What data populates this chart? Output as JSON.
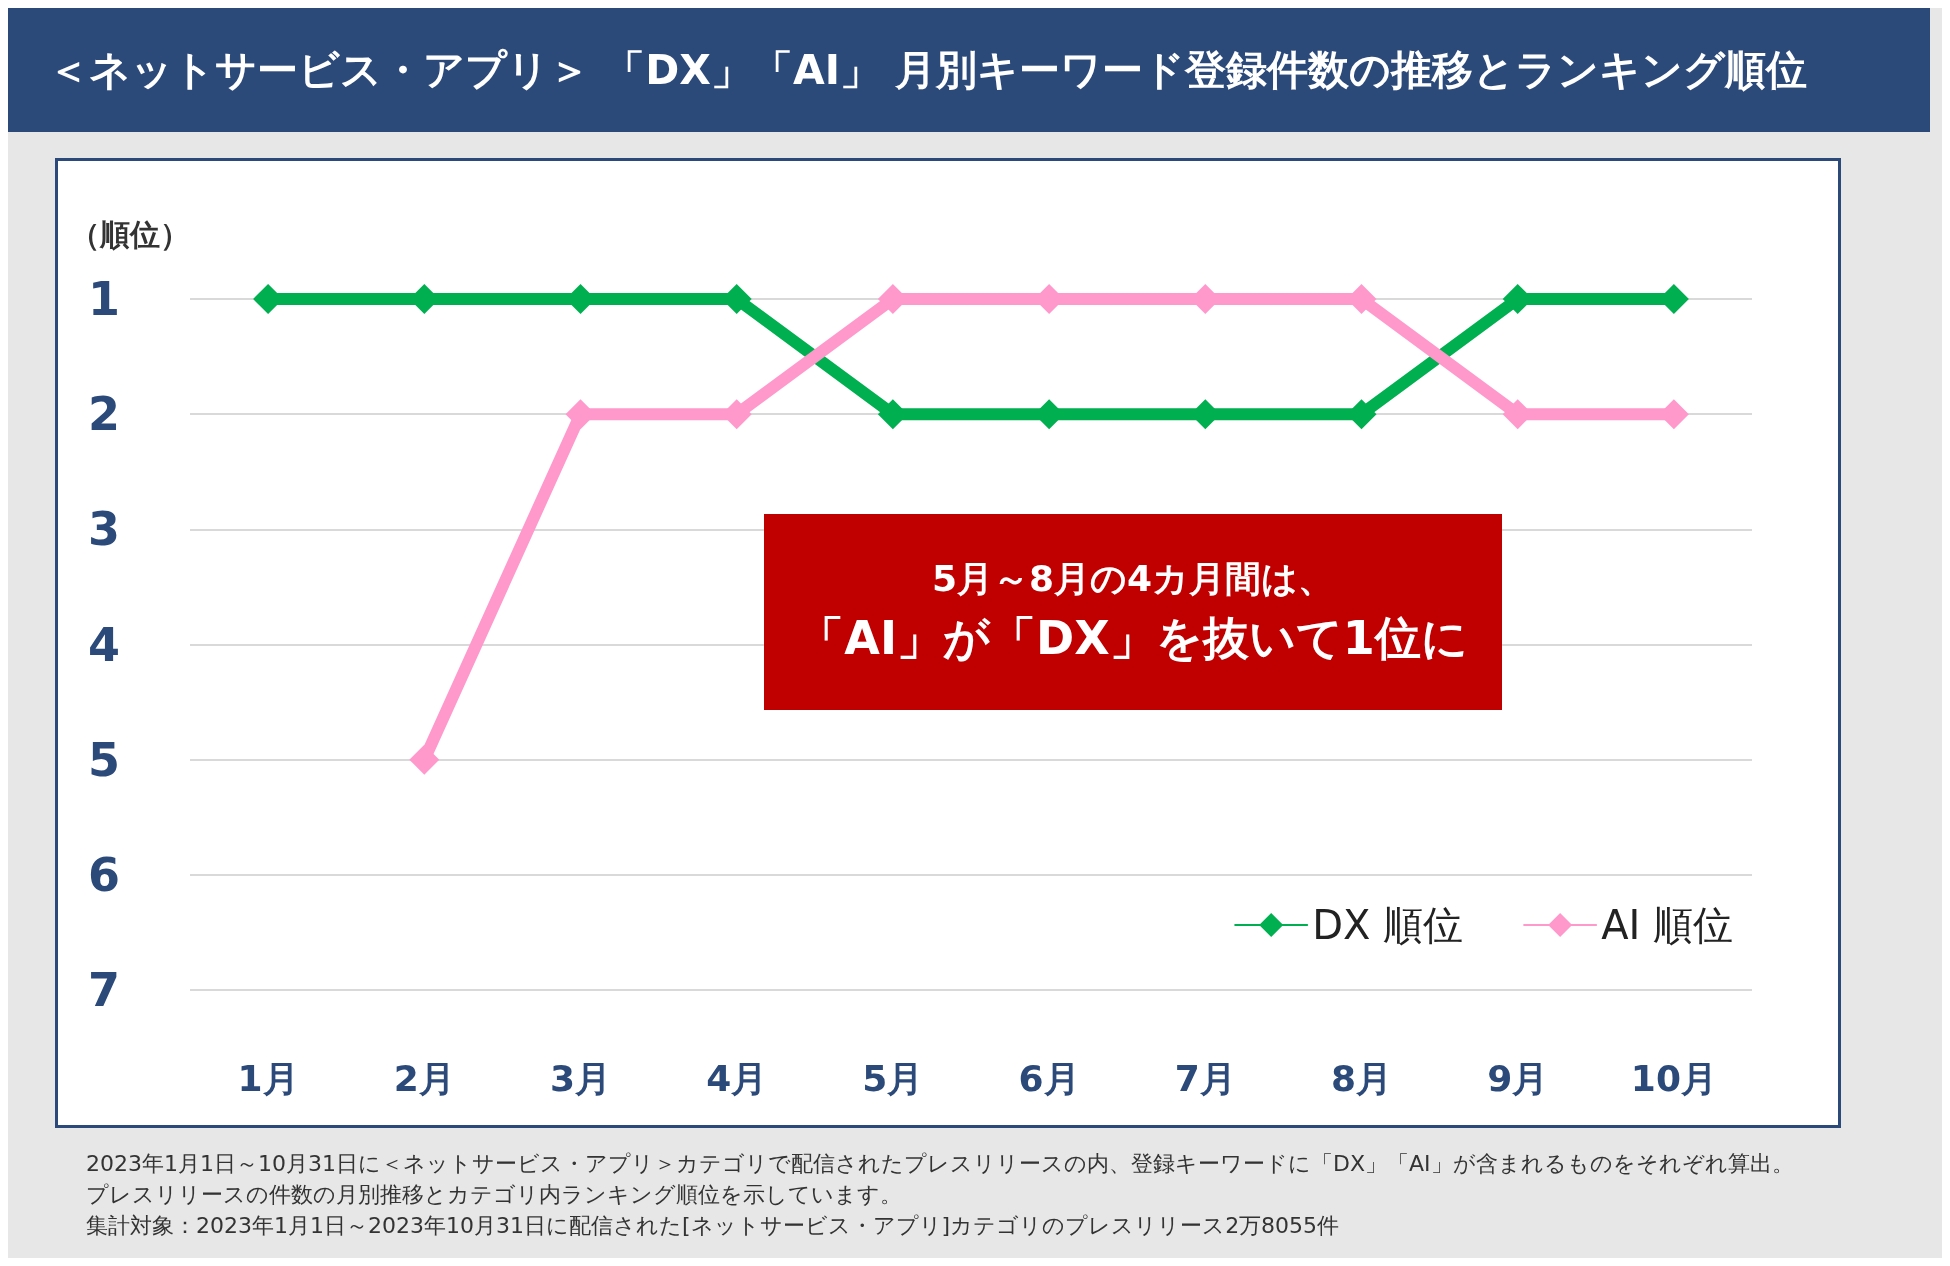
{
  "chart_data": {
    "type": "line",
    "title": "＜ネットサービス・アプリ＞ 「DX」「AI」 月別キーワード登録件数の推移とランキング順位",
    "ylabel": "（順位）",
    "categories": [
      "1月",
      "2月",
      "3月",
      "4月",
      "5月",
      "6月",
      "7月",
      "8月",
      "9月",
      "10月"
    ],
    "series": [
      {
        "name": "DX 順位",
        "color": "#00b050",
        "values": [
          1,
          1,
          1,
          1,
          2,
          2,
          2,
          2,
          1,
          1
        ]
      },
      {
        "name": "AI 順位",
        "color": "#ff99cc",
        "values": [
          null,
          5,
          2,
          2,
          1,
          1,
          1,
          1,
          2,
          2
        ]
      }
    ],
    "ylim": [
      7,
      1
    ],
    "yticks": [
      1,
      2,
      3,
      4,
      5,
      6,
      7
    ],
    "grid": "y",
    "legend": "bottom right",
    "marker": "diamond",
    "line_style": "solid",
    "annotations": [
      "5月～8月の4カ月間は、",
      "「AI」が「DX」を抜いて1位に",
      "2023年1月1日～10月31日に＜ネットサービス・アプリ＞カテゴリで配信されたプレスリリースの内、登録キーワードに「DX」「AI」が含まれるものをそれぞれ算出。",
      "プレスリリースの件数の月別推移とカテゴリ内ランキング順位を示しています。",
      "集計対象：2023年1月1日～2023年10月31日に配信された[ネットサービス・アプリ]カテゴリのプレスリリース2万8055件"
    ]
  }
}
